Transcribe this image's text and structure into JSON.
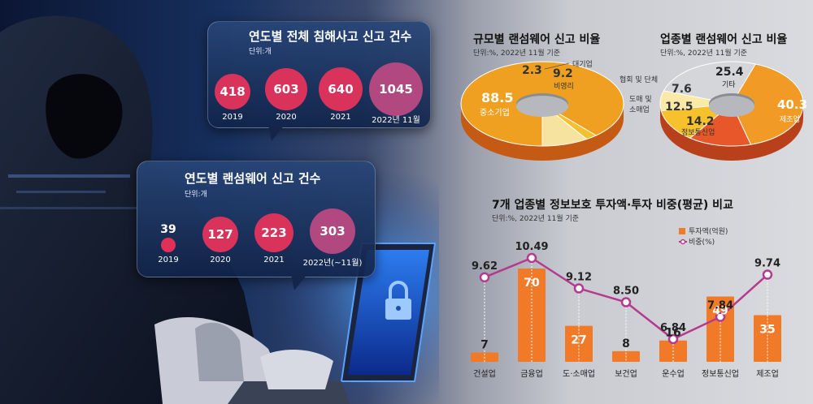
{
  "chart_data": [
    {
      "type": "bubble",
      "title": "연도별 전체 침해사고 신고 건수",
      "unit": "단위:개",
      "categories": [
        "2019",
        "2020",
        "2021",
        "2022년 11월"
      ],
      "values": [
        418,
        603,
        640,
        1045
      ]
    },
    {
      "type": "bubble",
      "title": "연도별 랜섬웨어 신고 건수",
      "unit": "단위:개",
      "categories": [
        "2019",
        "2020",
        "2021",
        "2022년(~11월)"
      ],
      "values": [
        39,
        127,
        223,
        303
      ]
    },
    {
      "type": "pie",
      "title": "규모별 랜섬웨어 신고 비율",
      "unit": "단위:%, 2022년 11월 기준",
      "slices": [
        {
          "label": "중소기업",
          "value": 88.5,
          "color": "#f0a020"
        },
        {
          "label": "",
          "value": 2.3,
          "color": "#f4c030"
        },
        {
          "label": "비영리",
          "value": 9.2,
          "color": "#f7e3a0"
        },
        {
          "label": "대기업",
          "value": null,
          "color": "#ffffff"
        }
      ]
    },
    {
      "type": "pie",
      "title": "업종별 랜섬웨어 신고 비율",
      "unit": "단위:%, 2022년 11월 기준",
      "slices": [
        {
          "label": "기타",
          "value": 25.4,
          "color": "#d5d6d9"
        },
        {
          "label": "제조업",
          "value": 40.3,
          "color": "#f29a26"
        },
        {
          "label": "정보통신업",
          "value": 14.2,
          "color": "#e8572a"
        },
        {
          "label": "도매 및\n소매업",
          "value": 12.5,
          "color": "#f6c12c"
        },
        {
          "label": "협회 및 단체",
          "value": 7.6,
          "color": "#fbe9a8"
        }
      ]
    },
    {
      "type": "bar+line",
      "title": "7개 업종별 정보보호 투자액·투자 비중(평균) 비교",
      "unit": "단위:%, 2022년 11월 기준",
      "categories": [
        "건설업",
        "금융업",
        "도·소매업",
        "보건업",
        "운수업",
        "정보통신업",
        "제조업"
      ],
      "series": [
        {
          "name": "투자액(억원)",
          "type": "bar",
          "values": [
            7,
            70,
            27,
            8,
            16,
            49,
            35
          ],
          "color": "#f07a28"
        },
        {
          "name": "비중(%)",
          "type": "line",
          "values": [
            9.62,
            10.49,
            9.12,
            8.5,
            6.84,
            7.84,
            9.74
          ],
          "color": "#b53a8e"
        }
      ],
      "value_labels": {
        "bar": [
          "7",
          "70",
          "27",
          "8",
          "16",
          "49",
          "35"
        ],
        "line": [
          "9.62",
          "10.49",
          "9.12",
          "8.50",
          "6.84",
          "7.84",
          "9.74"
        ]
      }
    }
  ]
}
